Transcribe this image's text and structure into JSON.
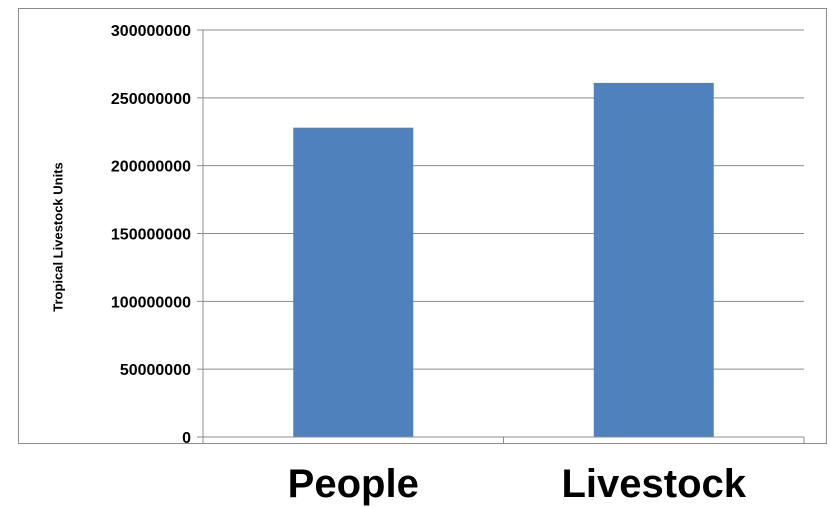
{
  "chart_data": {
    "type": "bar",
    "categories": [
      "People",
      "Livestock"
    ],
    "values": [
      228000000,
      261000000
    ],
    "title": "",
    "xlabel": "",
    "ylabel": "Tropical Livestock Units",
    "ylim": [
      0,
      300000000
    ],
    "yticks": [
      "0",
      "50000000",
      "100000000",
      "150000000",
      "200000000",
      "250000000",
      "300000000"
    ],
    "grid": true,
    "legend": "none",
    "bar_color": "#4f81bd",
    "grid_color": "#8c8c8c"
  }
}
